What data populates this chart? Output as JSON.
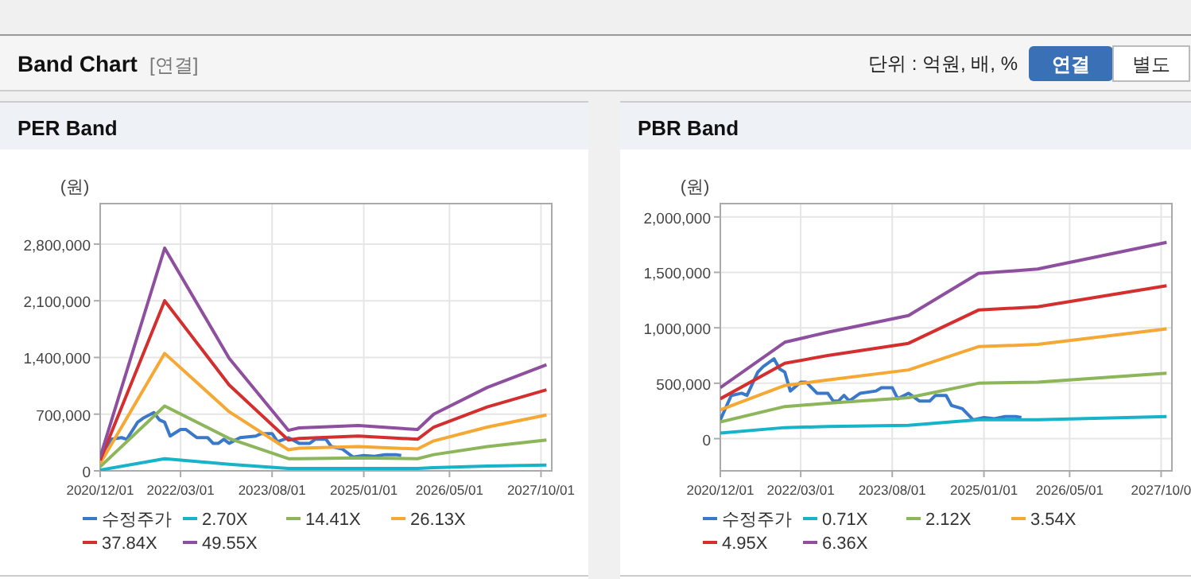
{
  "chart_data": [
    {
      "type": "other",
      "title": "Band Chart",
      "annotations": [
        "[연결]",
        "단위 : 억원, 배, %",
        "연결",
        "별도"
      ]
    },
    {
      "type": "line",
      "title": "PER Band",
      "ylabel": "(원)",
      "grid": true,
      "legend": "bottom",
      "marker": "none",
      "xlim": [
        "2020-12-01",
        "2027-12-01"
      ],
      "xticks": [
        {
          "value": "2020-12-01",
          "label": "2020/12/01"
        },
        {
          "value": "2022-03-01",
          "label": "2022/03/01"
        },
        {
          "value": "2023-08-01",
          "label": "2023/08/01"
        },
        {
          "value": "2025-01-01",
          "label": "2025/01/01"
        },
        {
          "value": "2026-05-01",
          "label": "2026/05/01"
        },
        {
          "value": "2027-10-01",
          "label": "2027/10/01"
        }
      ],
      "ylim": [
        0,
        3300000
      ],
      "yticks": [
        0,
        {
          "value": 700000,
          "label": "700,000"
        },
        {
          "value": 1400000,
          "label": "1,400,000"
        },
        {
          "value": 2100000,
          "label": "2,100,000"
        },
        {
          "value": 2800000,
          "label": "2,800,000"
        }
      ],
      "series": [
        {
          "name": "수정주가",
          "color": "#3a78c9",
          "x": [
            "2020-12",
            "2021-02",
            "2021-04",
            "2021-05",
            "2021-07",
            "2021-08",
            "2021-10",
            "2021-11",
            "2021-12",
            "2022-01",
            "2022-03",
            "2022-04",
            "2022-06",
            "2022-08",
            "2022-09",
            "2022-10",
            "2022-11",
            "2022-12",
            "2023-02",
            "2023-05",
            "2023-06",
            "2023-08",
            "2023-09",
            "2023-11",
            "2024-01",
            "2024-03",
            "2024-04",
            "2024-06",
            "2024-07",
            "2024-09",
            "2024-11",
            "2025-01",
            "2025-03",
            "2025-05",
            "2025-07",
            "2025-08"
          ],
          "values": [
            170000,
            390000,
            410000,
            390000,
            600000,
            650000,
            720000,
            630000,
            600000,
            430000,
            510000,
            510000,
            410000,
            410000,
            340000,
            340000,
            390000,
            340000,
            410000,
            430000,
            460000,
            460000,
            360000,
            410000,
            340000,
            340000,
            390000,
            390000,
            300000,
            270000,
            170000,
            190000,
            180000,
            200000,
            200000,
            190000
          ]
        },
        {
          "name": "2.70X",
          "color": "#17b3c9",
          "x": [
            "2020-12",
            "2021-12",
            "2022-12",
            "2023-11",
            "2024-01",
            "2024-12",
            "2025-11",
            "2026-02",
            "2026-12",
            "2027-11"
          ],
          "values": [
            10000,
            150000,
            80000,
            30000,
            30000,
            30000,
            30000,
            40000,
            60000,
            70000
          ]
        },
        {
          "name": "14.41X",
          "color": "#8db55a",
          "x": [
            "2020-12",
            "2021-12",
            "2022-12",
            "2023-11",
            "2024-01",
            "2024-12",
            "2025-11",
            "2026-02",
            "2026-12",
            "2027-11"
          ],
          "values": [
            50000,
            800000,
            400000,
            150000,
            150000,
            160000,
            150000,
            200000,
            300000,
            380000
          ]
        },
        {
          "name": "26.13X",
          "color": "#f5a833",
          "x": [
            "2020-12",
            "2021-12",
            "2022-12",
            "2023-11",
            "2024-01",
            "2024-12",
            "2025-11",
            "2026-02",
            "2026-12",
            "2027-11"
          ],
          "values": [
            90000,
            1450000,
            730000,
            260000,
            280000,
            300000,
            270000,
            370000,
            540000,
            690000
          ]
        },
        {
          "name": "37.84X",
          "color": "#d42f2f",
          "x": [
            "2020-12",
            "2021-12",
            "2022-12",
            "2023-11",
            "2024-01",
            "2024-12",
            "2025-11",
            "2026-02",
            "2026-12",
            "2027-11"
          ],
          "values": [
            130000,
            2100000,
            1060000,
            380000,
            400000,
            430000,
            390000,
            540000,
            790000,
            1000000
          ]
        },
        {
          "name": "49.55X",
          "color": "#8e4f9e",
          "x": [
            "2020-12",
            "2021-12",
            "2022-12",
            "2023-11",
            "2024-01",
            "2024-12",
            "2025-11",
            "2026-02",
            "2026-12",
            "2027-11"
          ],
          "values": [
            170000,
            2750000,
            1390000,
            500000,
            530000,
            560000,
            510000,
            700000,
            1030000,
            1310000
          ]
        }
      ]
    },
    {
      "type": "line",
      "title": "PBR Band",
      "ylabel": "(원)",
      "grid": true,
      "legend": "bottom",
      "marker": "none",
      "xlim": [
        "2020-12-01",
        "2027-12-01"
      ],
      "xticks": [
        {
          "value": "2020-12-01",
          "label": "2020/12/01"
        },
        {
          "value": "2022-03-01",
          "label": "2022/03/01"
        },
        {
          "value": "2023-08-01",
          "label": "2023/08/01"
        },
        {
          "value": "2025-01-01",
          "label": "2025/01/01"
        },
        {
          "value": "2026-05-01",
          "label": "2026/05/01"
        },
        {
          "value": "2027-10-01",
          "label": "2027/10/0"
        }
      ],
      "ylim": [
        -290000,
        2120000
      ],
      "yticks": [
        0,
        {
          "value": 500000,
          "label": "500,000"
        },
        {
          "value": 1000000,
          "label": "1,000,000"
        },
        {
          "value": 1500000,
          "label": "1,500,000"
        },
        {
          "value": 2000000,
          "label": "2,000,000"
        }
      ],
      "series": [
        {
          "name": "수정주가",
          "color": "#3a78c9",
          "x": [
            "2020-12",
            "2021-02",
            "2021-04",
            "2021-05",
            "2021-07",
            "2021-08",
            "2021-10",
            "2021-11",
            "2021-12",
            "2022-01",
            "2022-03",
            "2022-04",
            "2022-06",
            "2022-08",
            "2022-09",
            "2022-10",
            "2022-11",
            "2022-12",
            "2023-02",
            "2023-05",
            "2023-06",
            "2023-08",
            "2023-09",
            "2023-11",
            "2024-01",
            "2024-03",
            "2024-04",
            "2024-06",
            "2024-07",
            "2024-09",
            "2024-11",
            "2025-01",
            "2025-03",
            "2025-05",
            "2025-07",
            "2025-08"
          ],
          "values": [
            170000,
            390000,
            410000,
            390000,
            600000,
            650000,
            720000,
            630000,
            600000,
            430000,
            510000,
            510000,
            410000,
            410000,
            340000,
            340000,
            390000,
            340000,
            410000,
            430000,
            460000,
            460000,
            360000,
            410000,
            340000,
            340000,
            390000,
            390000,
            300000,
            270000,
            170000,
            190000,
            180000,
            200000,
            200000,
            190000
          ]
        },
        {
          "name": "0.71X",
          "color": "#17b3c9",
          "x": [
            "2020-12",
            "2021-12",
            "2022-08",
            "2023-11",
            "2024-12",
            "2025-11",
            "2027-11"
          ],
          "values": [
            50000,
            100000,
            110000,
            120000,
            170000,
            170000,
            200000
          ]
        },
        {
          "name": "2.12X",
          "color": "#8db55a",
          "x": [
            "2020-12",
            "2021-12",
            "2022-08",
            "2023-11",
            "2024-12",
            "2025-11",
            "2027-11"
          ],
          "values": [
            150000,
            290000,
            320000,
            370000,
            500000,
            510000,
            590000
          ]
        },
        {
          "name": "3.54X",
          "color": "#f5a833",
          "x": [
            "2020-12",
            "2021-12",
            "2022-08",
            "2023-11",
            "2024-12",
            "2025-11",
            "2027-11"
          ],
          "values": [
            260000,
            480000,
            530000,
            620000,
            830000,
            850000,
            990000
          ]
        },
        {
          "name": "4.95X",
          "color": "#d42f2f",
          "x": [
            "2020-12",
            "2021-12",
            "2022-08",
            "2023-11",
            "2024-12",
            "2025-11",
            "2027-11"
          ],
          "values": [
            360000,
            680000,
            750000,
            860000,
            1160000,
            1190000,
            1380000
          ]
        },
        {
          "name": "6.36X",
          "color": "#8e4f9e",
          "x": [
            "2020-12",
            "2021-12",
            "2022-08",
            "2023-11",
            "2024-12",
            "2025-11",
            "2027-11"
          ],
          "values": [
            460000,
            870000,
            960000,
            1110000,
            1490000,
            1530000,
            1770000
          ]
        }
      ]
    }
  ]
}
